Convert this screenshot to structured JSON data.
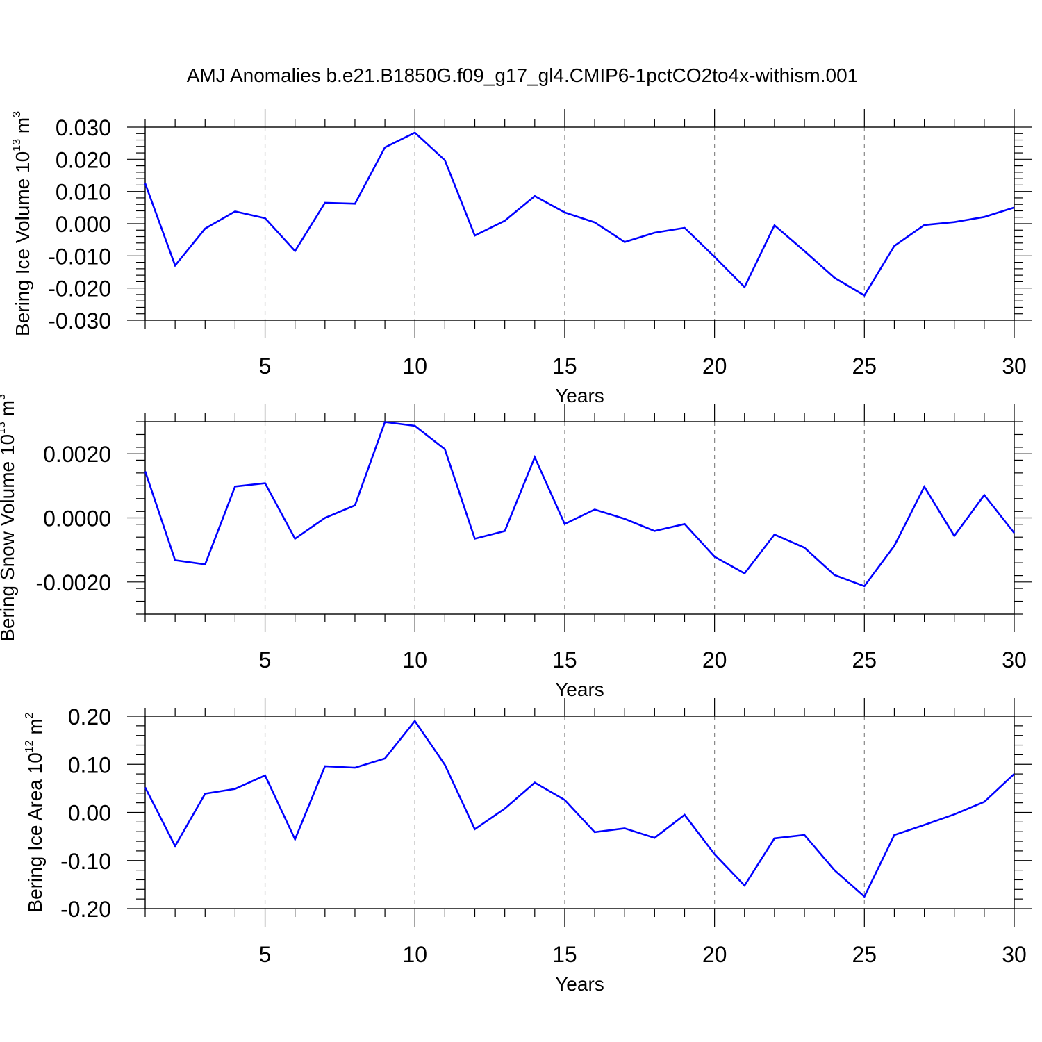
{
  "title": "AMJ Anomalies b.e21.B1850G.f09_g17_gl4.CMIP6-1pctCO2to4x-withism.001",
  "line_color": "#0000ff",
  "chart_data": [
    {
      "type": "line",
      "xlabel": "Years",
      "ylabel": {
        "base": "Bering Ice Volume 10",
        "exp1": "13",
        "unit": " m",
        "exp2": "3"
      },
      "xlim": [
        1,
        30
      ],
      "ylim": [
        -0.03,
        0.03
      ],
      "xticks": [
        5,
        10,
        15,
        20,
        25,
        30
      ],
      "xtick_labels": [
        "5",
        "10",
        "15",
        "20",
        "25",
        "30"
      ],
      "yticks": [
        -0.03,
        -0.02,
        -0.01,
        0.0,
        0.01,
        0.02,
        0.03
      ],
      "ytick_labels": [
        "-0.030",
        "-0.020",
        "-0.010",
        "0.000",
        "0.010",
        "0.020",
        "0.030"
      ],
      "x": [
        1,
        2,
        3,
        4,
        5,
        6,
        7,
        8,
        9,
        10,
        11,
        12,
        13,
        14,
        15,
        16,
        17,
        18,
        19,
        20,
        21,
        22,
        23,
        24,
        25,
        26,
        27,
        28,
        29,
        30
      ],
      "y": [
        0.0125,
        -0.013,
        -0.0015,
        0.0038,
        0.0017,
        -0.0085,
        0.0065,
        0.0062,
        0.0237,
        0.0283,
        0.0197,
        -0.0037,
        0.0009,
        0.0086,
        0.0035,
        0.0004,
        -0.0057,
        -0.0028,
        -0.0013,
        -0.0103,
        -0.0197,
        -0.0005,
        -0.0085,
        -0.0168,
        -0.0223,
        -0.0069,
        -0.0004,
        0.0005,
        0.0021,
        0.005
      ]
    },
    {
      "type": "line",
      "xlabel": "Years",
      "ylabel": {
        "base": "Bering Snow Volume 10",
        "exp1": "13",
        "unit": " m",
        "exp2": "3"
      },
      "xlim": [
        1,
        30
      ],
      "ylim": [
        -0.003,
        0.003
      ],
      "xticks": [
        5,
        10,
        15,
        20,
        25,
        30
      ],
      "xtick_labels": [
        "5",
        "10",
        "15",
        "20",
        "25",
        "30"
      ],
      "yticks": [
        -0.002,
        0.0,
        0.002
      ],
      "ytick_labels": [
        "-0.0020",
        "0.0000",
        "0.0020"
      ],
      "x": [
        1,
        2,
        3,
        4,
        5,
        6,
        7,
        8,
        9,
        10,
        11,
        12,
        13,
        14,
        15,
        16,
        17,
        18,
        19,
        20,
        21,
        22,
        23,
        24,
        25,
        26,
        27,
        28,
        29,
        30
      ],
      "y": [
        0.00145,
        -0.00132,
        -0.00145,
        0.00098,
        0.00108,
        -0.00065,
        0.0,
        0.00039,
        0.00299,
        0.00287,
        0.00214,
        -0.00065,
        -0.00041,
        0.00189,
        -0.00019,
        0.00026,
        -3e-05,
        -0.00041,
        -0.00019,
        -0.00121,
        -0.00173,
        -0.00052,
        -0.00093,
        -0.00178,
        -0.00213,
        -0.00087,
        0.00097,
        -0.00056,
        0.00071,
        -0.00047
      ]
    },
    {
      "type": "line",
      "xlabel": "Years",
      "ylabel": {
        "base": "Bering Ice Area 10",
        "exp1": "12",
        "unit": " m",
        "exp2": "2"
      },
      "xlim": [
        1,
        30
      ],
      "ylim": [
        -0.2,
        0.2
      ],
      "xticks": [
        5,
        10,
        15,
        20,
        25,
        30
      ],
      "xtick_labels": [
        "5",
        "10",
        "15",
        "20",
        "25",
        "30"
      ],
      "yticks": [
        -0.2,
        -0.1,
        0.0,
        0.1,
        0.2
      ],
      "ytick_labels": [
        "-0.20",
        "-0.10",
        "0.00",
        "0.10",
        "0.20"
      ],
      "x": [
        1,
        2,
        3,
        4,
        5,
        6,
        7,
        8,
        9,
        10,
        11,
        12,
        13,
        14,
        15,
        16,
        17,
        18,
        19,
        20,
        21,
        22,
        23,
        24,
        25,
        26,
        27,
        28,
        29,
        30
      ],
      "y": [
        0.052,
        -0.07,
        0.039,
        0.049,
        0.077,
        -0.056,
        0.096,
        0.093,
        0.112,
        0.19,
        0.099,
        -0.035,
        0.008,
        0.062,
        0.026,
        -0.041,
        -0.033,
        -0.053,
        -0.005,
        -0.087,
        -0.152,
        -0.054,
        -0.047,
        -0.12,
        -0.175,
        -0.047,
        -0.026,
        -0.004,
        0.022,
        0.08
      ]
    }
  ]
}
